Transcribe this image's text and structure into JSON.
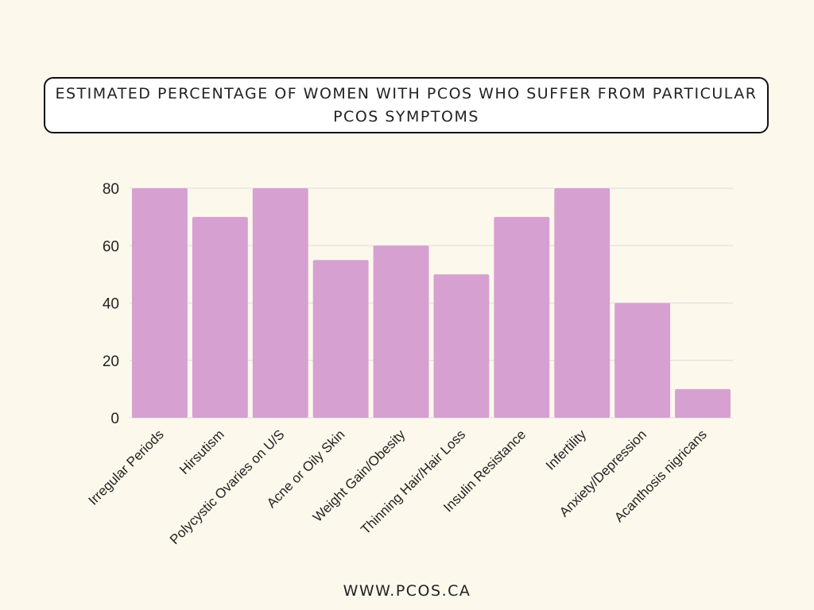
{
  "title": "ESTIMATED PERCENTAGE OF WOMEN WITH PCOS WHO SUFFER FROM PARTICULAR PCOS SYMPTOMS",
  "footer": "WWW.PCOS.CA",
  "chart_data": {
    "type": "bar",
    "categories": [
      "Irregular Periods",
      "Hirsutism",
      "Polycystic Ovaries on U/S",
      "Acne or Oily Skin",
      "Weight Gain/Obesity",
      "Thinning Hair/Hair Loss",
      "Insulin Resistance",
      "Infertility",
      "Anxiety/Depression",
      "Acanthosis nigricans"
    ],
    "values": [
      80,
      70,
      80,
      55,
      60,
      50,
      70,
      80,
      40,
      10
    ],
    "title": "ESTIMATED PERCENTAGE OF WOMEN WITH PCOS WHO SUFFER FROM PARTICULAR PCOS SYMPTOMS",
    "xlabel": "",
    "ylabel": "",
    "ylim": [
      0,
      80
    ],
    "yticks": [
      0,
      20,
      40,
      60,
      80
    ],
    "grid": true,
    "bar_color": "#d6a0d1",
    "grid_color": "#dcdcdc"
  }
}
